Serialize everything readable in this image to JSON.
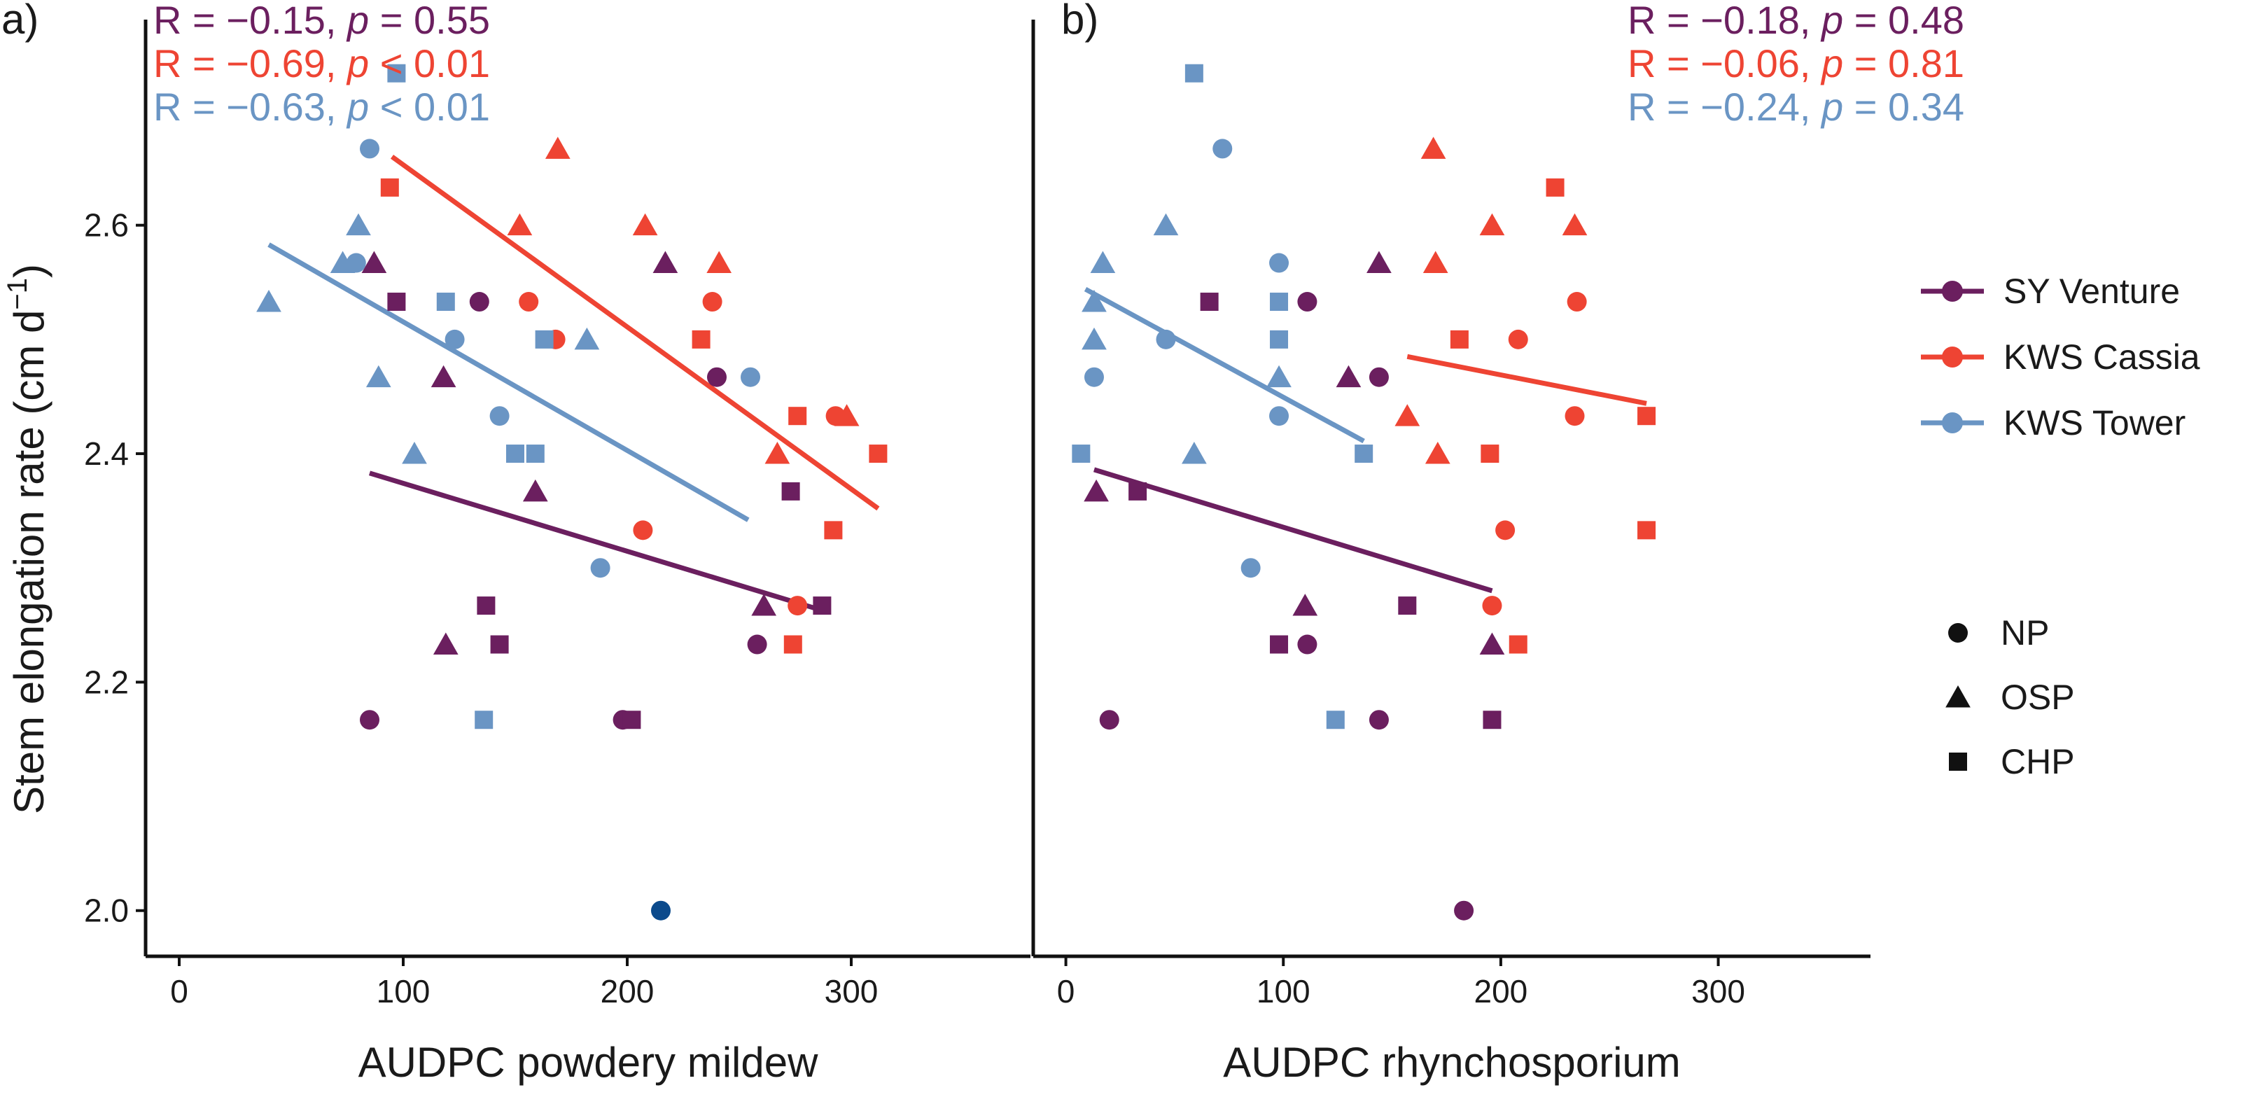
{
  "figure": {
    "y_axis_title": "Stem elongation rate (cm d",
    "y_axis_title_sup": "−1",
    "y_axis_title_end": ")",
    "y_ticks": [
      "2.0",
      "2.2",
      "2.4",
      "2.6"
    ],
    "x_ticks": [
      "0",
      "100",
      "200",
      "300"
    ]
  },
  "colors": {
    "SY Venture": "#6b1f5f",
    "KWS Cassia": "#ee4433",
    "KWS Tower": "#6a95c4",
    "outlier": "#0b4a8c"
  },
  "legend": {
    "varieties": [
      "SY Venture",
      "KWS Cassia",
      "KWS Tower"
    ],
    "treatments": [
      "NP",
      "OSP",
      "CHP"
    ]
  },
  "chart_data": [
    {
      "type": "scatter",
      "panel": "a)",
      "xlabel": "AUDPC powdery mildew",
      "ylabel": "Stem elongation rate (cm d−1)",
      "xlim": [
        -15,
        380
      ],
      "ylim": [
        1.96,
        2.78
      ],
      "stats": [
        {
          "variety": "SY Venture",
          "pre": "R = −0.15, ",
          "p": "p",
          "post": " = 0.55"
        },
        {
          "variety": "KWS Cassia",
          "pre": "R = −0.69, ",
          "p": "p",
          "post": " < 0.01"
        },
        {
          "variety": "KWS Tower",
          "pre": "R = −0.63, ",
          "p": "p",
          "post": " < 0.01"
        }
      ],
      "series": [
        {
          "name": "SY Venture",
          "fit": [
            [
              85,
              2.383
            ],
            [
              285,
              2.264
            ]
          ],
          "points": [
            [
              85,
              2.167,
              "NP"
            ],
            [
              134,
              2.533,
              "NP"
            ],
            [
              240,
              2.467,
              "NP"
            ],
            [
              258,
              2.233,
              "NP"
            ],
            [
              198,
              2.167,
              "NP"
            ],
            [
              87,
              2.567,
              "OSP"
            ],
            [
              118,
              2.467,
              "OSP"
            ],
            [
              119,
              2.233,
              "OSP"
            ],
            [
              159,
              2.367,
              "OSP"
            ],
            [
              217,
              2.567,
              "OSP"
            ],
            [
              261,
              2.267,
              "OSP"
            ],
            [
              97,
              2.533,
              "CHP"
            ],
            [
              137,
              2.267,
              "CHP"
            ],
            [
              143,
              2.233,
              "CHP"
            ],
            [
              202,
              2.167,
              "CHP"
            ],
            [
              273,
              2.367,
              "CHP"
            ],
            [
              287,
              2.267,
              "CHP"
            ]
          ]
        },
        {
          "name": "KWS Cassia",
          "fit": [
            [
              95,
              2.66
            ],
            [
              312,
              2.352
            ]
          ],
          "points": [
            [
              156,
              2.533,
              "NP"
            ],
            [
              168,
              2.5,
              "NP"
            ],
            [
              207,
              2.333,
              "NP"
            ],
            [
              238,
              2.533,
              "NP"
            ],
            [
              276,
              2.267,
              "NP"
            ],
            [
              293,
              2.433,
              "NP"
            ],
            [
              152,
              2.6,
              "OSP"
            ],
            [
              169,
              2.667,
              "OSP"
            ],
            [
              208,
              2.6,
              "OSP"
            ],
            [
              241,
              2.567,
              "OSP"
            ],
            [
              267,
              2.4,
              "OSP"
            ],
            [
              298,
              2.433,
              "OSP"
            ],
            [
              94,
              2.633,
              "CHP"
            ],
            [
              233,
              2.5,
              "CHP"
            ],
            [
              276,
              2.433,
              "CHP"
            ],
            [
              274,
              2.233,
              "CHP"
            ],
            [
              292,
              2.333,
              "CHP"
            ],
            [
              312,
              2.4,
              "CHP"
            ]
          ]
        },
        {
          "name": "KWS Tower",
          "fit": [
            [
              40,
              2.583
            ],
            [
              254,
              2.342
            ]
          ],
          "points": [
            [
              85,
              2.667,
              "NP"
            ],
            [
              79,
              2.567,
              "NP"
            ],
            [
              123,
              2.5,
              "NP"
            ],
            [
              143,
              2.433,
              "NP"
            ],
            [
              188,
              2.3,
              "NP"
            ],
            [
              255,
              2.467,
              "NP"
            ],
            [
              40,
              2.533,
              "OSP"
            ],
            [
              73,
              2.567,
              "OSP"
            ],
            [
              80,
              2.6,
              "OSP"
            ],
            [
              89,
              2.467,
              "OSP"
            ],
            [
              105,
              2.4,
              "OSP"
            ],
            [
              182,
              2.5,
              "OSP"
            ],
            [
              97,
              2.733,
              "CHP"
            ],
            [
              119,
              2.533,
              "CHP"
            ],
            [
              136,
              2.167,
              "CHP"
            ],
            [
              150,
              2.4,
              "CHP"
            ],
            [
              159,
              2.4,
              "CHP"
            ],
            [
              163,
              2.5,
              "CHP"
            ]
          ]
        },
        {
          "name": "outlier",
          "fit": [],
          "points": [
            [
              215,
              2.0,
              "NP"
            ]
          ]
        }
      ]
    },
    {
      "type": "scatter",
      "panel": "b)",
      "xlabel": "AUDPC rhynchosporium",
      "ylabel": "",
      "xlim": [
        -15,
        370
      ],
      "ylim": [
        1.96,
        2.78
      ],
      "stats": [
        {
          "variety": "SY Venture",
          "pre": "R = −0.18, ",
          "p": "p",
          "post": " = 0.48"
        },
        {
          "variety": "KWS Cassia",
          "pre": "R = −0.06, ",
          "p": "p",
          "post": " = 0.81"
        },
        {
          "variety": "KWS Tower",
          "pre": "R = −0.24, ",
          "p": "p",
          "post": " = 0.34"
        }
      ],
      "series": [
        {
          "name": "SY Venture",
          "fit": [
            [
              13,
              2.386
            ],
            [
              196,
              2.28
            ]
          ],
          "points": [
            [
              20,
              2.167,
              "NP"
            ],
            [
              111,
              2.533,
              "NP"
            ],
            [
              111,
              2.233,
              "NP"
            ],
            [
              144,
              2.467,
              "NP"
            ],
            [
              144,
              2.167,
              "NP"
            ],
            [
              183,
              2.0,
              "NP"
            ],
            [
              14,
              2.367,
              "OSP"
            ],
            [
              110,
              2.267,
              "OSP"
            ],
            [
              130,
              2.467,
              "OSP"
            ],
            [
              144,
              2.567,
              "OSP"
            ],
            [
              196,
              2.233,
              "OSP"
            ],
            [
              33,
              2.367,
              "CHP"
            ],
            [
              66,
              2.533,
              "CHP"
            ],
            [
              98,
              2.233,
              "CHP"
            ],
            [
              157,
              2.267,
              "CHP"
            ],
            [
              196,
              2.167,
              "CHP"
            ]
          ]
        },
        {
          "name": "KWS Cassia",
          "fit": [
            [
              157,
              2.485
            ],
            [
              267,
              2.444
            ]
          ],
          "points": [
            [
              196,
              2.267,
              "NP"
            ],
            [
              202,
              2.333,
              "NP"
            ],
            [
              208,
              2.5,
              "NP"
            ],
            [
              234,
              2.433,
              "NP"
            ],
            [
              235,
              2.533,
              "NP"
            ],
            [
              157,
              2.433,
              "OSP"
            ],
            [
              169,
              2.667,
              "OSP"
            ],
            [
              170,
              2.567,
              "OSP"
            ],
            [
              171,
              2.4,
              "OSP"
            ],
            [
              196,
              2.6,
              "OSP"
            ],
            [
              234,
              2.6,
              "OSP"
            ],
            [
              181,
              2.5,
              "CHP"
            ],
            [
              195,
              2.4,
              "CHP"
            ],
            [
              208,
              2.233,
              "CHP"
            ],
            [
              225,
              2.633,
              "CHP"
            ],
            [
              267,
              2.433,
              "CHP"
            ],
            [
              267,
              2.333,
              "CHP"
            ]
          ]
        },
        {
          "name": "KWS Tower",
          "fit": [
            [
              9,
              2.544
            ],
            [
              137,
              2.411
            ]
          ],
          "points": [
            [
              13,
              2.467,
              "NP"
            ],
            [
              46,
              2.5,
              "NP"
            ],
            [
              72,
              2.667,
              "NP"
            ],
            [
              85,
              2.3,
              "NP"
            ],
            [
              98,
              2.567,
              "NP"
            ],
            [
              98,
              2.433,
              "NP"
            ],
            [
              13,
              2.533,
              "OSP"
            ],
            [
              13,
              2.5,
              "OSP"
            ],
            [
              17,
              2.567,
              "OSP"
            ],
            [
              46,
              2.6,
              "OSP"
            ],
            [
              59,
              2.4,
              "OSP"
            ],
            [
              98,
              2.467,
              "OSP"
            ],
            [
              7,
              2.4,
              "CHP"
            ],
            [
              59,
              2.733,
              "CHP"
            ],
            [
              98,
              2.533,
              "CHP"
            ],
            [
              98,
              2.5,
              "CHP"
            ],
            [
              124,
              2.167,
              "CHP"
            ],
            [
              137,
              2.4,
              "CHP"
            ]
          ]
        }
      ]
    }
  ]
}
